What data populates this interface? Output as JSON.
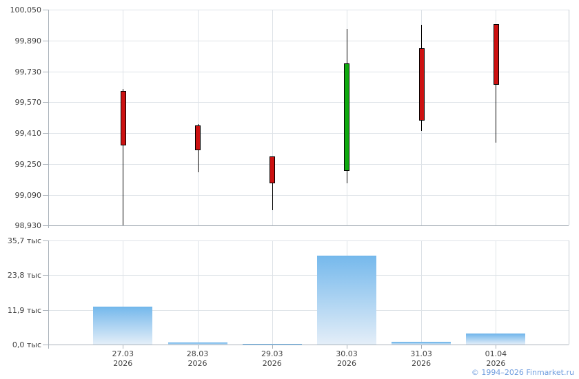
{
  "footer": {
    "copyright": "© 1994–2026 Finmarket.ru"
  },
  "chart_data": [
    {
      "type": "candlestick",
      "panel": "price",
      "title": "",
      "xlabel": "",
      "ylabel": "",
      "grid": true,
      "legend": false,
      "ylim": [
        98930,
        100050
      ],
      "categories": [
        "27.03 2026",
        "28.03 2026",
        "29.03 2026",
        "30.03 2026",
        "31.03 2026",
        "01.04 2026"
      ],
      "yticks": [
        {
          "label": "100,050",
          "value": 100050
        },
        {
          "label": "99,890",
          "value": 99890
        },
        {
          "label": "99,730",
          "value": 99730
        },
        {
          "label": "99,570",
          "value": 99570
        },
        {
          "label": "99,410",
          "value": 99410
        },
        {
          "label": "99,250",
          "value": 99250
        },
        {
          "label": "99,090",
          "value": 99090
        },
        {
          "label": "98,930",
          "value": 98930
        }
      ],
      "candles": [
        {
          "date": "27.03",
          "year": "2026",
          "open": 99630,
          "high": 99640,
          "low": 98930,
          "close": 99345,
          "direction": "down"
        },
        {
          "date": "28.03",
          "year": "2026",
          "open": 99450,
          "high": 99455,
          "low": 99205,
          "close": 99320,
          "direction": "down"
        },
        {
          "date": "29.03",
          "year": "2026",
          "open": 99290,
          "high": 99290,
          "low": 99010,
          "close": 99150,
          "direction": "down"
        },
        {
          "date": "30.03",
          "year": "2026",
          "open": 99215,
          "high": 99950,
          "low": 99150,
          "close": 99770,
          "direction": "up"
        },
        {
          "date": "31.03",
          "year": "2026",
          "open": 99850,
          "high": 99970,
          "low": 99420,
          "close": 99475,
          "direction": "down"
        },
        {
          "date": "01.04",
          "year": "2026",
          "open": 99975,
          "high": 99975,
          "low": 99360,
          "close": 99660,
          "direction": "down"
        }
      ]
    },
    {
      "type": "bar",
      "panel": "volume",
      "title": "",
      "xlabel": "",
      "ylabel": "",
      "grid": true,
      "legend": false,
      "ylim": [
        0,
        35700
      ],
      "categories": [
        "27.03 2026",
        "28.03 2026",
        "29.03 2026",
        "30.03 2026",
        "31.03 2026",
        "01.04 2026"
      ],
      "values": [
        13000,
        600,
        300,
        30500,
        950,
        3800
      ],
      "yticks": [
        {
          "label": "35,7 тыс",
          "value": 35700
        },
        {
          "label": "23,8 тыс",
          "value": 23800
        },
        {
          "label": "11,9 тыс",
          "value": 11900
        },
        {
          "label": "0,0 тыс",
          "value": 0
        }
      ]
    }
  ],
  "colors": {
    "up": "#0faa0f",
    "down": "#cc1111",
    "candle_border": "#000000",
    "wick": "#000000",
    "bar_gradient_top": "#76b9ec",
    "bar_gradient_bottom": "#e4eef8",
    "bar_top_edge": "#6cb2e8",
    "grid": "#dde2e7",
    "axis": "#a9b1b9",
    "right_border": "#c2cad2",
    "text": "#3f3f3f",
    "copyright": "#6f9ddf",
    "background": "#ffffff"
  }
}
